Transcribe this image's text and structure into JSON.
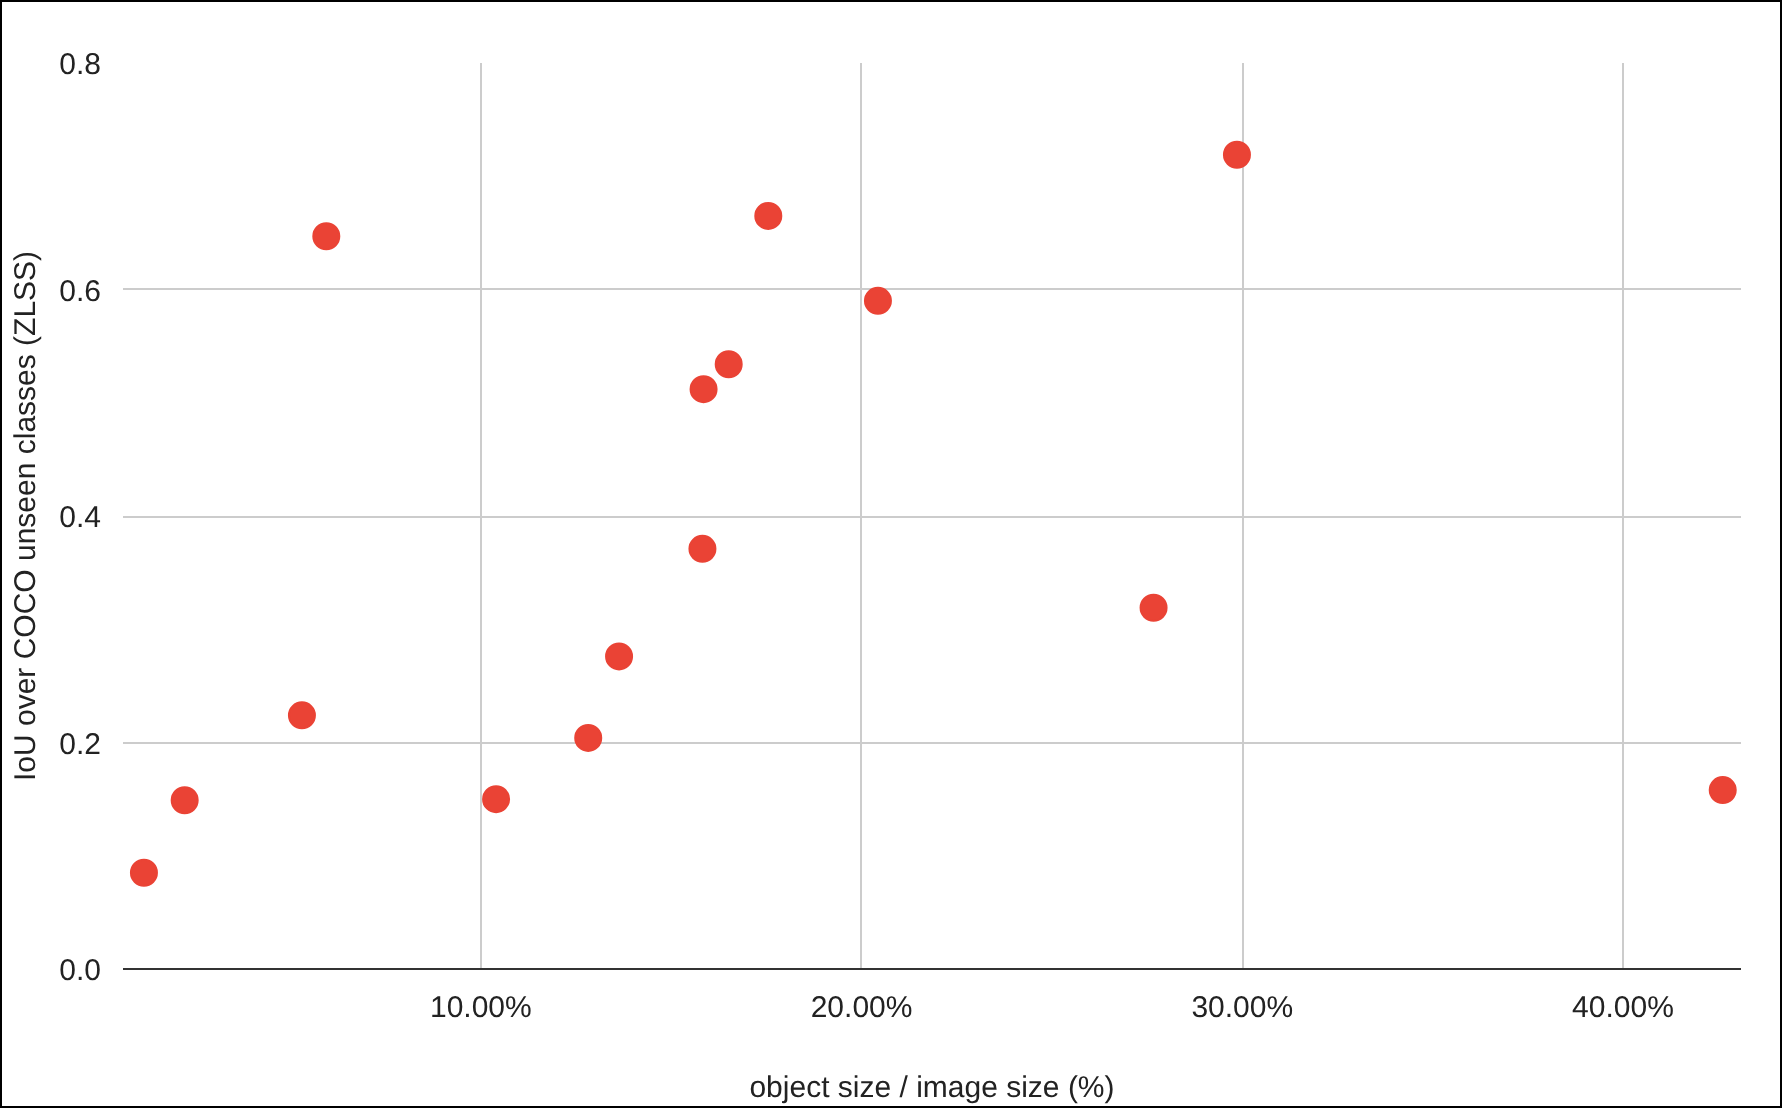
{
  "chart_data": {
    "type": "scatter",
    "xlabel": "object size / image size (%)",
    "ylabel": "IoU over COCO unseen classes (ZLSS)",
    "x": [
      1.15,
      2.22,
      5.3,
      5.94,
      10.4,
      12.82,
      13.63,
      15.82,
      15.85,
      16.51,
      17.55,
      20.43,
      27.67,
      29.86,
      42.62
    ],
    "series": [
      {
        "color": "#ea4335",
        "values": [
          0.085,
          0.149,
          0.224,
          0.647,
          0.15,
          0.204,
          0.276,
          0.371,
          0.512,
          0.534,
          0.665,
          0.59,
          0.319,
          0.719,
          0.158
        ]
      }
    ],
    "xlim": [
      0.6,
      43.1
    ],
    "ylim": [
      0,
      0.8
    ],
    "xticks": [
      {
        "value": 10,
        "label": "10.00%"
      },
      {
        "value": 20,
        "label": "20.00%"
      },
      {
        "value": 30,
        "label": "30.00%"
      },
      {
        "value": 40,
        "label": "40.00%"
      }
    ],
    "yticks": [
      {
        "value": 0,
        "label": "0.0"
      },
      0.2,
      0.4,
      0.6,
      0.8
    ],
    "grid": true,
    "marker": "circle"
  }
}
